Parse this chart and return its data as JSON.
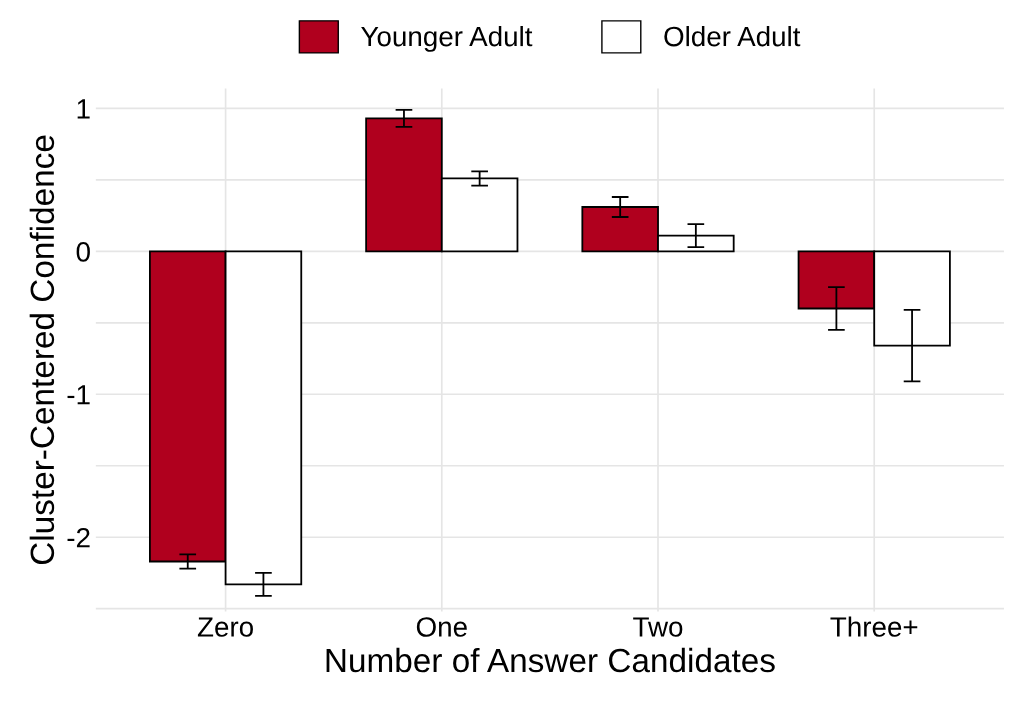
{
  "chart_data": {
    "type": "bar",
    "xlabel": "Number of Answer Candidates",
    "ylabel": "Cluster-Centered Confidence",
    "categories": [
      "Zero",
      "One",
      "Two",
      "Three+"
    ],
    "series": [
      {
        "name": "Younger Adult",
        "color": "#b0001e",
        "values": [
          -2.17,
          0.93,
          0.31,
          -0.4
        ],
        "errors": [
          0.05,
          0.06,
          0.07,
          0.15
        ]
      },
      {
        "name": "Older Adult",
        "color": "#ffffff",
        "values": [
          -2.33,
          0.51,
          0.11,
          -0.66
        ],
        "errors": [
          0.08,
          0.05,
          0.08,
          0.25
        ]
      }
    ],
    "ylim": [
      -2.52,
      1.14
    ],
    "yticks": [
      {
        "value": -2.5,
        "label": null
      },
      -2,
      {
        "value": -1.5,
        "label": null
      },
      -1,
      {
        "value": -0.5,
        "label": null
      },
      0,
      {
        "value": 0.5,
        "label": null
      },
      1
    ],
    "grid": true,
    "legend": "top"
  }
}
